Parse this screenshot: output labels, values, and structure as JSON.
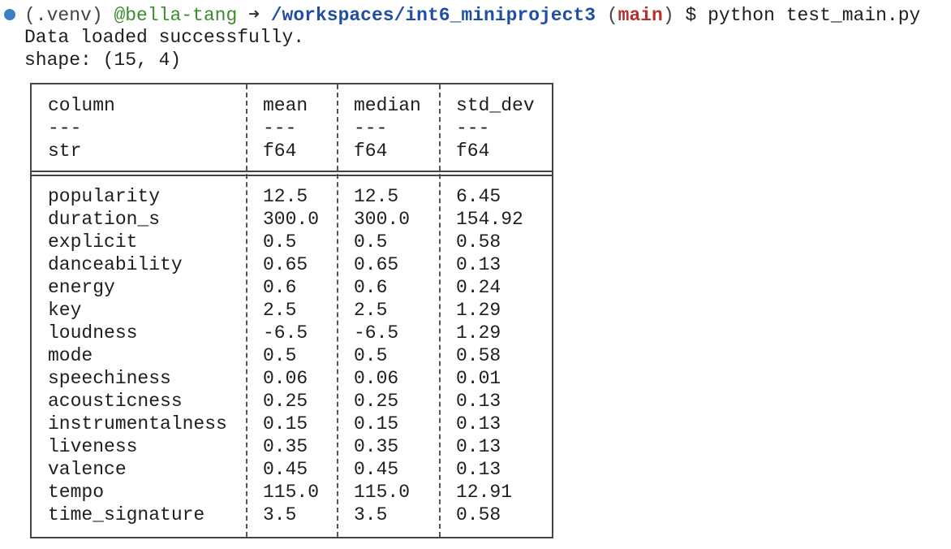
{
  "prompt": {
    "venv": "(.venv)",
    "user": "@bella-tang",
    "arrow": "➜",
    "path": "/workspaces/int6_miniproject3",
    "branch_open": "(",
    "branch": "main",
    "branch_close": ")",
    "command": "$ python test_main.py"
  },
  "output": [
    "Data loaded successfully.",
    "shape: (15, 4)"
  ],
  "table": {
    "header": [
      [
        "column",
        "---",
        "str"
      ],
      [
        "mean",
        "---",
        "f64"
      ],
      [
        "median",
        "---",
        "f64"
      ],
      [
        "std_dev",
        "---",
        "f64"
      ]
    ],
    "rows": [
      [
        "popularity",
        "12.5",
        "12.5",
        "6.45"
      ],
      [
        "duration_s",
        "300.0",
        "300.0",
        "154.92"
      ],
      [
        "explicit",
        "0.5",
        "0.5",
        "0.58"
      ],
      [
        "danceability",
        "0.65",
        "0.65",
        "0.13"
      ],
      [
        "energy",
        "0.6",
        "0.6",
        "0.24"
      ],
      [
        "key",
        "2.5",
        "2.5",
        "1.29"
      ],
      [
        "loudness",
        "-6.5",
        "-6.5",
        "1.29"
      ],
      [
        "mode",
        "0.5",
        "0.5",
        "0.58"
      ],
      [
        "speechiness",
        "0.06",
        "0.06",
        "0.01"
      ],
      [
        "acousticness",
        "0.25",
        "0.25",
        "0.13"
      ],
      [
        "instrumentalness",
        "0.15",
        "0.15",
        "0.13"
      ],
      [
        "liveness",
        "0.35",
        "0.35",
        "0.13"
      ],
      [
        "valence",
        "0.45",
        "0.45",
        "0.13"
      ],
      [
        "tempo",
        "115.0",
        "115.0",
        "12.91"
      ],
      [
        "time_signature",
        "3.5",
        "3.5",
        "0.58"
      ]
    ]
  }
}
